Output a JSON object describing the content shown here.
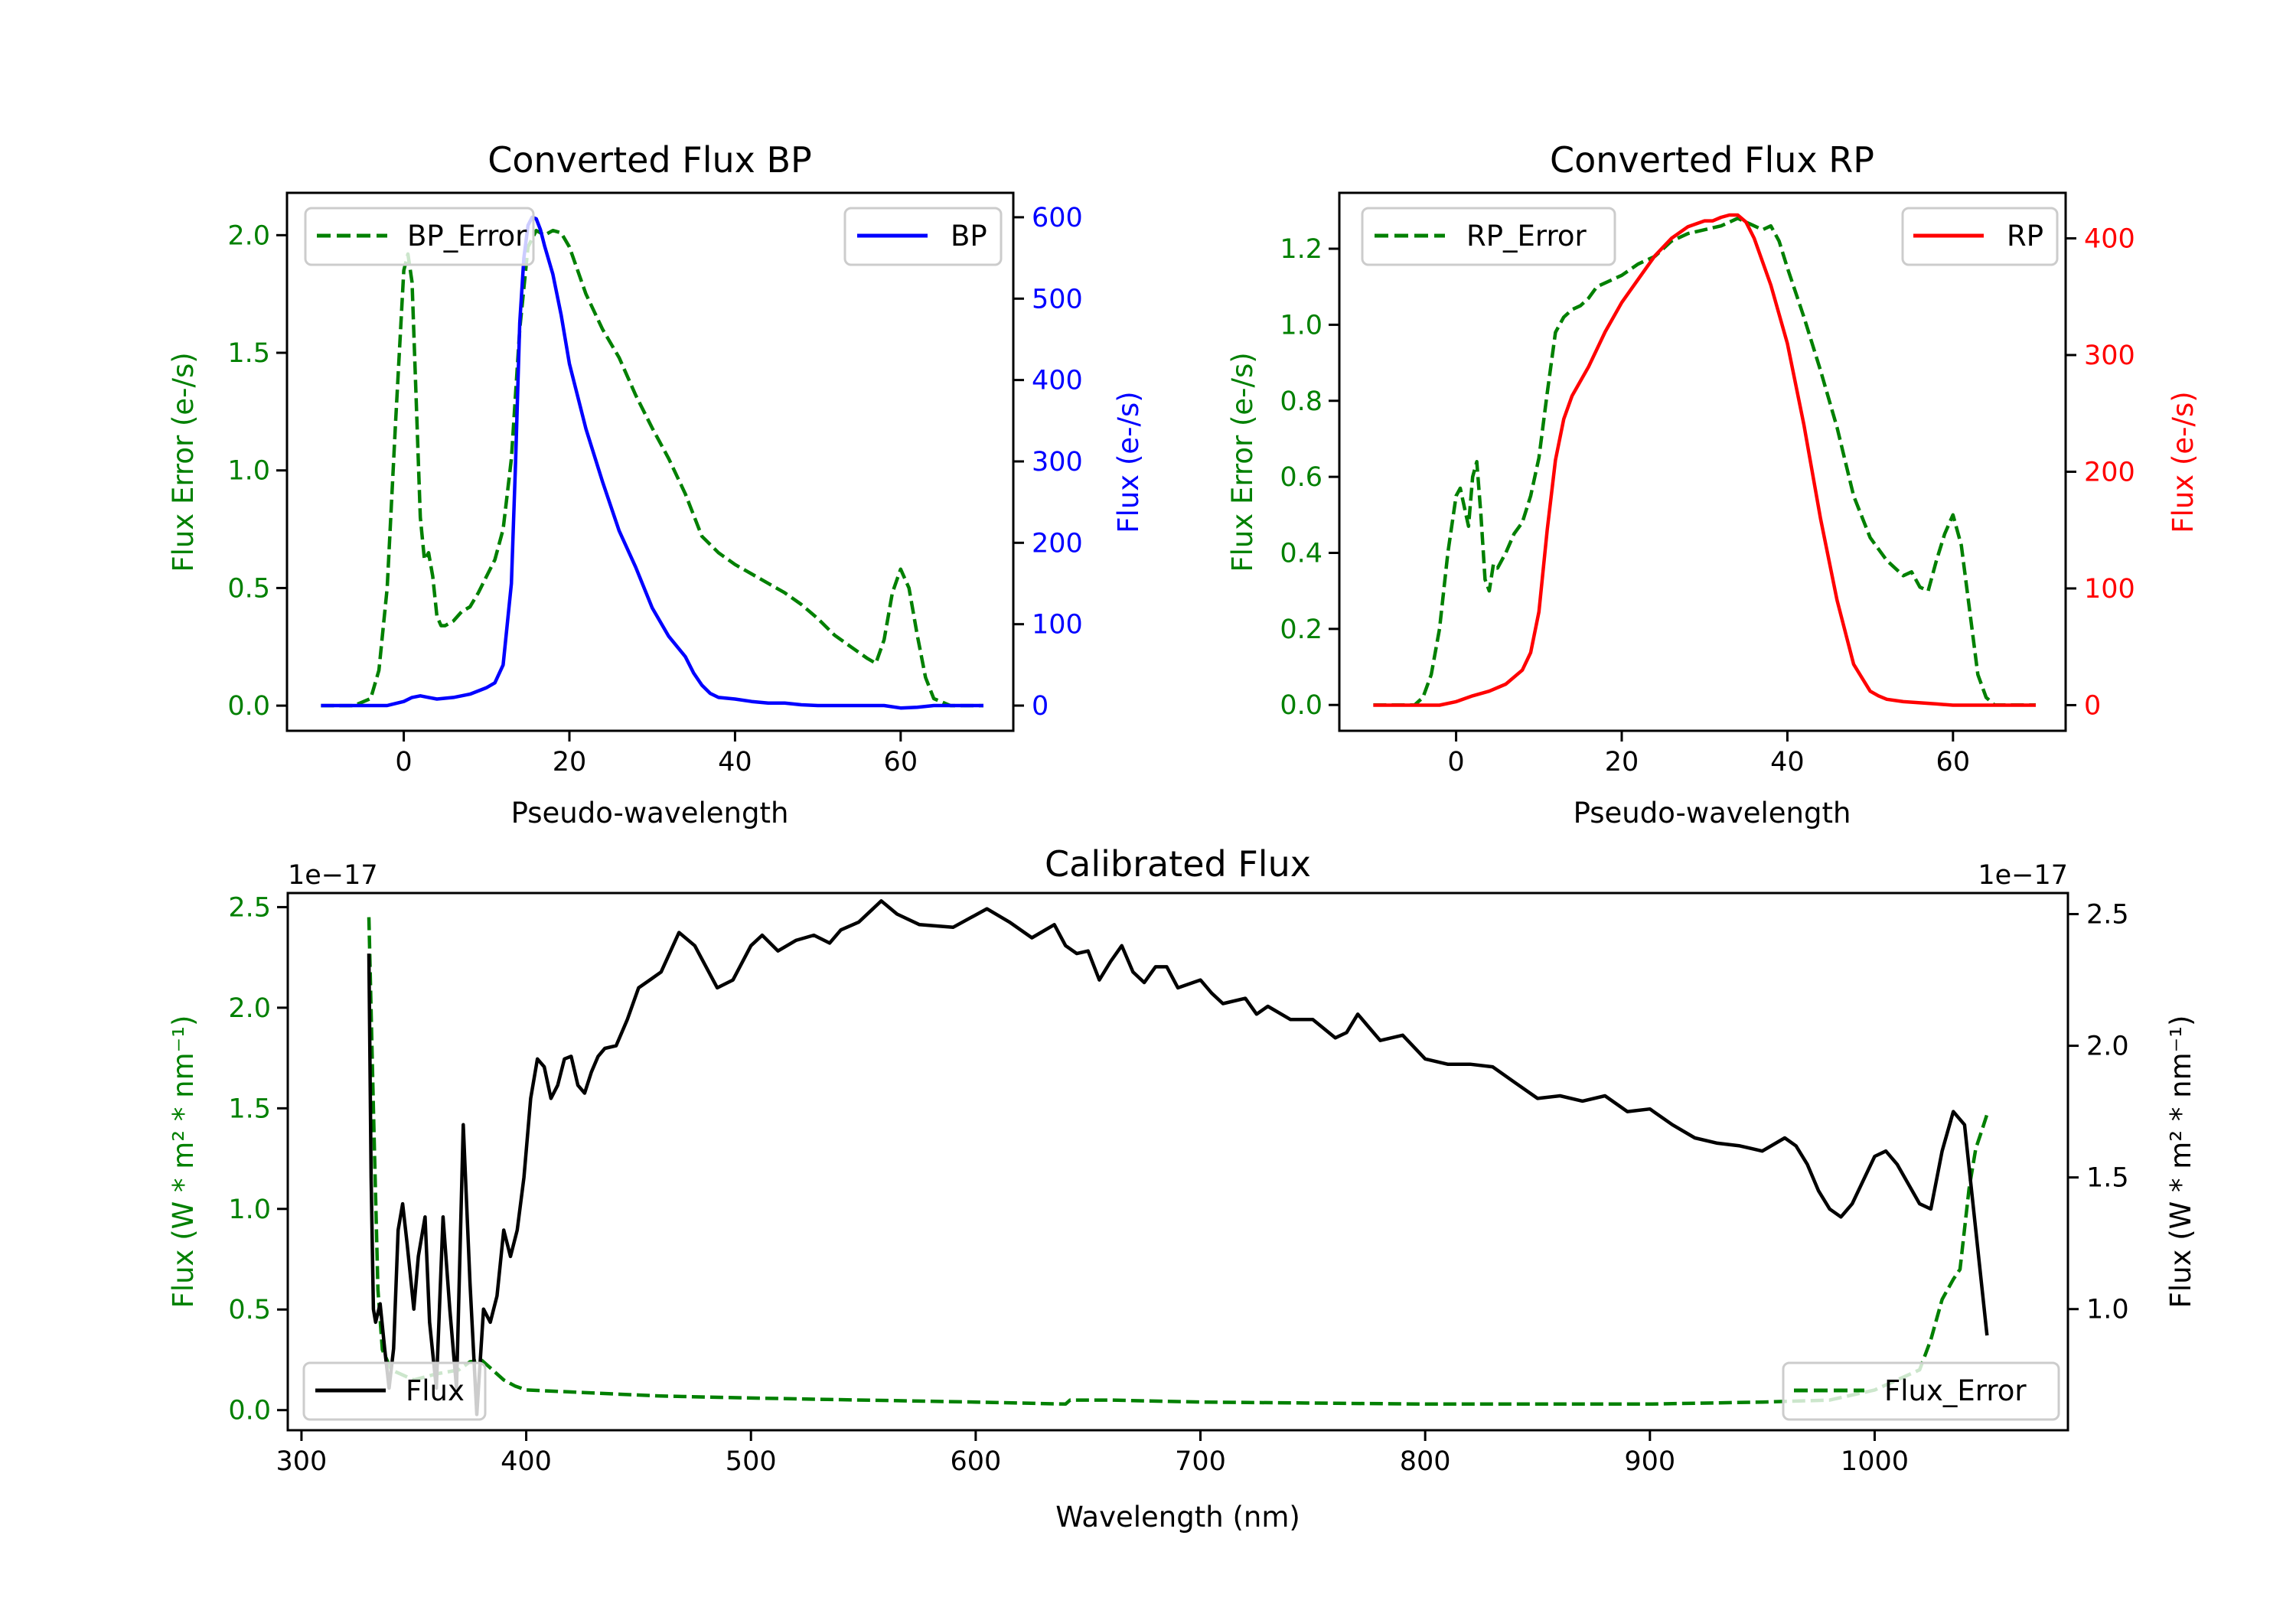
{
  "figure": {
    "background": "#ffffff"
  },
  "chart_data": [
    {
      "id": "bp",
      "type": "line",
      "title": "Converted Flux BP",
      "xlabel": "Pseudo-wavelength",
      "ylabel_left": "Flux Error (e-/s)",
      "ylabel_right": "Flux (e-/s)",
      "xlim": [
        -14.1,
        73.6
      ],
      "ylim_left": [
        -0.107,
        2.18
      ],
      "ylim_right": [
        -31,
        630
      ],
      "xticks": [
        0,
        20,
        40,
        60
      ],
      "xtick_labels": [
        "0",
        "20",
        "40",
        "60"
      ],
      "yticks_left": [
        0.0,
        0.5,
        1.0,
        1.5,
        2.0
      ],
      "ytick_labels_left": [
        "0.0",
        "0.5",
        "1.0",
        "1.5",
        "2.0"
      ],
      "yticks_right": [
        0,
        100,
        200,
        300,
        400,
        500,
        600
      ],
      "ytick_labels_right": [
        "0",
        "100",
        "200",
        "300",
        "400",
        "500",
        "600"
      ],
      "left_color": "#008000",
      "right_color": "#0000ff",
      "legend_left": {
        "label": "BP_Error",
        "placement": "upper-left"
      },
      "legend_right": {
        "label": "BP",
        "placement": "upper-right"
      },
      "series": [
        {
          "name": "BP_Error",
          "axis": "left",
          "style": "dashed",
          "color": "#008000",
          "x": [
            -10,
            -6,
            -4,
            -3,
            -2,
            -1,
            0,
            0.5,
            1,
            1.5,
            2,
            2.5,
            3,
            3.5,
            4,
            4.5,
            5,
            6,
            7,
            8,
            9,
            10,
            11,
            12,
            13,
            14,
            15,
            16,
            17,
            18,
            19,
            20,
            22,
            24,
            26,
            28,
            30,
            32,
            34,
            36,
            38,
            40,
            42,
            44,
            46,
            48,
            50,
            52,
            54,
            56,
            57,
            58,
            59,
            60,
            61,
            62,
            63,
            64,
            66,
            70
          ],
          "y": [
            0,
            0,
            0.03,
            0.15,
            0.5,
            1.2,
            1.85,
            1.92,
            1.8,
            1.3,
            0.8,
            0.62,
            0.65,
            0.55,
            0.38,
            0.34,
            0.34,
            0.36,
            0.4,
            0.42,
            0.48,
            0.55,
            0.62,
            0.75,
            1.05,
            1.6,
            1.95,
            2.02,
            2.0,
            2.02,
            2.01,
            1.95,
            1.75,
            1.6,
            1.48,
            1.32,
            1.18,
            1.05,
            0.9,
            0.72,
            0.65,
            0.6,
            0.56,
            0.52,
            0.48,
            0.43,
            0.37,
            0.3,
            0.25,
            0.2,
            0.18,
            0.28,
            0.48,
            0.58,
            0.5,
            0.3,
            0.12,
            0.03,
            0,
            0
          ]
        },
        {
          "name": "BP",
          "axis": "right",
          "style": "solid",
          "color": "#0000ff",
          "x": [
            -10,
            -5,
            -2,
            0,
            1,
            2,
            3,
            4,
            6,
            8,
            10,
            11,
            12,
            13,
            13.5,
            14,
            14.5,
            15,
            15.5,
            16,
            16.5,
            17,
            18,
            19,
            20,
            22,
            24,
            26,
            28,
            30,
            32,
            34,
            35,
            36,
            37,
            38,
            40,
            42,
            44,
            46,
            48,
            50,
            52,
            54,
            56,
            58,
            60,
            62,
            64,
            66,
            70
          ],
          "y": [
            0,
            0,
            0,
            5,
            10,
            12,
            10,
            8,
            10,
            14,
            22,
            28,
            50,
            150,
            300,
            470,
            550,
            590,
            600,
            598,
            585,
            565,
            530,
            480,
            420,
            340,
            275,
            215,
            170,
            120,
            85,
            60,
            40,
            25,
            15,
            10,
            8,
            5,
            3,
            3,
            1,
            0,
            0,
            0,
            0,
            0,
            -3,
            -2,
            0,
            0,
            0
          ]
        }
      ]
    },
    {
      "id": "rp",
      "type": "line",
      "title": "Converted Flux RP",
      "xlabel": "Pseudo-wavelength",
      "ylabel_left": "Flux Error (e-/s)",
      "ylabel_right": "Flux (e-/s)",
      "xlim": [
        -14.1,
        73.6
      ],
      "ylim_left": [
        -0.068,
        1.347
      ],
      "ylim_right": [
        -22,
        439
      ],
      "xticks": [
        0,
        20,
        40,
        60
      ],
      "xtick_labels": [
        "0",
        "20",
        "40",
        "60"
      ],
      "yticks_left": [
        0.0,
        0.2,
        0.4,
        0.6,
        0.8,
        1.0,
        1.2
      ],
      "ytick_labels_left": [
        "0.0",
        "0.2",
        "0.4",
        "0.6",
        "0.8",
        "1.0",
        "1.2"
      ],
      "yticks_right": [
        0,
        100,
        200,
        300,
        400
      ],
      "ytick_labels_right": [
        "0",
        "100",
        "200",
        "300",
        "400"
      ],
      "left_color": "#008000",
      "right_color": "#ff0000",
      "legend_left": {
        "label": "RP_Error",
        "placement": "upper-left"
      },
      "legend_right": {
        "label": "RP",
        "placement": "upper-right"
      },
      "series": [
        {
          "name": "RP_Error",
          "axis": "left",
          "style": "dashed",
          "color": "#008000",
          "x": [
            -10,
            -5,
            -4,
            -3,
            -2,
            -1,
            0,
            0.5,
            1,
            1.5,
            2,
            2.5,
            3,
            3.5,
            4,
            4.5,
            5,
            6,
            7,
            8,
            9,
            10,
            11,
            12,
            13,
            14,
            15,
            16,
            17,
            18,
            20,
            22,
            24,
            26,
            28,
            30,
            32,
            34,
            36,
            37,
            38,
            39,
            40,
            42,
            44,
            46,
            48,
            50,
            52,
            54,
            55,
            56,
            57,
            58,
            59,
            60,
            61,
            62,
            63,
            64,
            65,
            70
          ],
          "y": [
            0,
            0,
            0.02,
            0.08,
            0.2,
            0.4,
            0.55,
            0.57,
            0.52,
            0.47,
            0.6,
            0.64,
            0.5,
            0.33,
            0.3,
            0.37,
            0.36,
            0.4,
            0.45,
            0.48,
            0.55,
            0.65,
            0.82,
            0.98,
            1.02,
            1.04,
            1.05,
            1.07,
            1.1,
            1.11,
            1.13,
            1.16,
            1.18,
            1.22,
            1.24,
            1.25,
            1.26,
            1.28,
            1.26,
            1.25,
            1.26,
            1.22,
            1.15,
            1.02,
            0.88,
            0.73,
            0.55,
            0.44,
            0.38,
            0.34,
            0.35,
            0.31,
            0.3,
            0.38,
            0.45,
            0.5,
            0.42,
            0.25,
            0.08,
            0.02,
            0,
            0
          ]
        },
        {
          "name": "RP",
          "axis": "right",
          "style": "solid",
          "color": "#ff0000",
          "x": [
            -10,
            -5,
            -2,
            0,
            2,
            4,
            6,
            8,
            9,
            10,
            11,
            12,
            13,
            14,
            16,
            18,
            20,
            22,
            24,
            26,
            28,
            30,
            31,
            32,
            33,
            34,
            35,
            36,
            38,
            40,
            42,
            44,
            46,
            48,
            50,
            51,
            52,
            54,
            56,
            58,
            60,
            62,
            64,
            66,
            70
          ],
          "y": [
            0,
            0,
            0,
            3,
            8,
            12,
            18,
            30,
            45,
            80,
            150,
            210,
            245,
            265,
            290,
            320,
            345,
            365,
            385,
            400,
            410,
            415,
            415,
            418,
            420,
            420,
            414,
            400,
            360,
            310,
            240,
            160,
            90,
            35,
            12,
            8,
            5,
            3,
            2,
            1,
            0,
            0,
            0,
            0,
            0
          ]
        }
      ]
    },
    {
      "id": "calibrated",
      "type": "line",
      "title": "Calibrated Flux",
      "xlabel": "Wavelength (nm)",
      "ylabel_left": "Flux (W * m² * nm⁻¹)",
      "ylabel_right": "Flux (W * m² * nm⁻¹)",
      "offset_text_left": "1e−17",
      "offset_text_right": "1e−17",
      "xlim": [
        293.9,
        1086
      ],
      "ylim_left": [
        -0.1,
        2.57
      ],
      "ylim_right": [
        0.54,
        2.58
      ],
      "xticks": [
        300,
        400,
        500,
        600,
        700,
        800,
        900,
        1000
      ],
      "xtick_labels": [
        "300",
        "400",
        "500",
        "600",
        "700",
        "800",
        "900",
        "1000"
      ],
      "yticks_left": [
        0.0,
        0.5,
        1.0,
        1.5,
        2.0,
        2.5
      ],
      "ytick_labels_left": [
        "0.0",
        "0.5",
        "1.0",
        "1.5",
        "2.0",
        "2.5"
      ],
      "yticks_right": [
        1.0,
        1.5,
        2.0,
        2.5
      ],
      "ytick_labels_right": [
        "1.0",
        "1.5",
        "2.0",
        "2.5"
      ],
      "left_color": "#008000",
      "right_color": "#000000",
      "legend_left": {
        "label": "Flux",
        "placement": "lower-left"
      },
      "legend_right": {
        "label": "Flux_Error",
        "placement": "lower-right"
      },
      "series": [
        {
          "name": "Flux_Error",
          "axis": "left",
          "style": "dashed",
          "color": "#008000",
          "x": [
            330,
            332,
            334,
            336,
            340,
            350,
            360,
            370,
            375,
            380,
            385,
            390,
            395,
            400,
            420,
            440,
            460,
            500,
            550,
            600,
            640,
            642,
            660,
            700,
            800,
            900,
            950,
            980,
            1000,
            1010,
            1020,
            1025,
            1030,
            1035,
            1038,
            1040,
            1042,
            1045,
            1048,
            1050
          ],
          "y": [
            2.45,
            1.5,
            0.6,
            0.3,
            0.2,
            0.15,
            0.18,
            0.2,
            0.24,
            0.25,
            0.2,
            0.15,
            0.12,
            0.1,
            0.09,
            0.08,
            0.07,
            0.06,
            0.05,
            0.04,
            0.03,
            0.05,
            0.05,
            0.04,
            0.03,
            0.03,
            0.04,
            0.05,
            0.1,
            0.15,
            0.2,
            0.35,
            0.55,
            0.65,
            0.7,
            0.9,
            1.1,
            1.3,
            1.4,
            1.47
          ]
        },
        {
          "name": "Flux",
          "axis": "right",
          "style": "solid",
          "color": "#000000",
          "x": [
            330,
            331,
            332,
            333,
            335,
            337,
            339,
            341,
            343,
            345,
            347,
            350,
            352,
            355,
            357,
            360,
            363,
            366,
            369,
            372,
            375,
            378,
            381,
            384,
            387,
            390,
            393,
            396,
            399,
            402,
            405,
            408,
            411,
            414,
            417,
            420,
            423,
            426,
            429,
            432,
            435,
            440,
            445,
            450,
            455,
            460,
            468,
            475,
            485,
            492,
            500,
            505,
            512,
            520,
            528,
            535,
            540,
            548,
            558,
            565,
            575,
            590,
            605,
            615,
            625,
            635,
            640,
            645,
            650,
            655,
            660,
            665,
            670,
            675,
            680,
            685,
            690,
            700,
            705,
            710,
            720,
            725,
            730,
            740,
            750,
            760,
            765,
            770,
            775,
            780,
            790,
            800,
            810,
            820,
            830,
            840,
            850,
            860,
            870,
            880,
            890,
            900,
            910,
            920,
            930,
            940,
            950,
            960,
            965,
            970,
            975,
            980,
            985,
            990,
            1000,
            1005,
            1010,
            1020,
            1025,
            1030,
            1035,
            1040,
            1045,
            1050
          ],
          "y": [
            2.35,
            1.5,
            1.0,
            0.95,
            1.02,
            0.85,
            0.7,
            0.85,
            1.3,
            1.4,
            1.25,
            1.0,
            1.2,
            1.35,
            0.95,
            0.7,
            1.35,
            1.0,
            0.7,
            1.7,
            1.1,
            0.6,
            1.0,
            0.95,
            1.05,
            1.3,
            1.2,
            1.3,
            1.5,
            1.8,
            1.95,
            1.92,
            1.8,
            1.85,
            1.95,
            1.96,
            1.85,
            1.82,
            1.9,
            1.96,
            1.99,
            2.0,
            2.1,
            2.22,
            2.25,
            2.28,
            2.43,
            2.38,
            2.22,
            2.25,
            2.38,
            2.42,
            2.36,
            2.4,
            2.42,
            2.39,
            2.44,
            2.47,
            2.55,
            2.5,
            2.46,
            2.45,
            2.52,
            2.47,
            2.41,
            2.46,
            2.38,
            2.35,
            2.36,
            2.25,
            2.32,
            2.38,
            2.28,
            2.24,
            2.3,
            2.3,
            2.22,
            2.25,
            2.2,
            2.16,
            2.18,
            2.12,
            2.15,
            2.1,
            2.1,
            2.03,
            2.05,
            2.12,
            2.07,
            2.02,
            2.04,
            1.95,
            1.93,
            1.93,
            1.92,
            1.86,
            1.8,
            1.81,
            1.79,
            1.81,
            1.75,
            1.76,
            1.7,
            1.65,
            1.63,
            1.62,
            1.6,
            1.65,
            1.62,
            1.55,
            1.45,
            1.38,
            1.35,
            1.4,
            1.58,
            1.6,
            1.55,
            1.4,
            1.38,
            1.6,
            1.75,
            1.7,
            1.3,
            0.9
          ]
        }
      ]
    }
  ]
}
